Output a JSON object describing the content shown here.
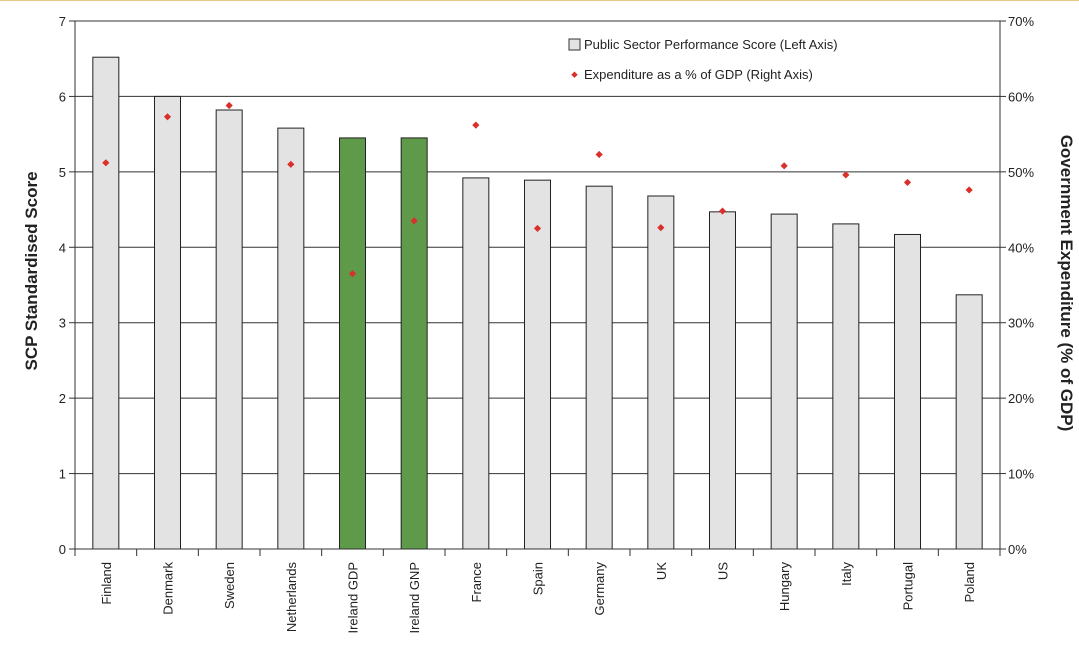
{
  "chart_data": {
    "type": "bar",
    "categories": [
      "Finland",
      "Denmark",
      "Sweden",
      "Netherlands",
      "Ireland  GDP",
      "Ireland GNP",
      "France",
      "Spain",
      "Germany",
      "UK",
      "US",
      "Hungary",
      "Italy",
      "Portugal",
      "Poland"
    ],
    "series": [
      {
        "name": "Public Sector Performance Score (Left Axis)",
        "type": "bar",
        "axis": "left",
        "values": [
          6.52,
          6.0,
          5.82,
          5.58,
          5.45,
          5.45,
          4.92,
          4.89,
          4.81,
          4.68,
          4.47,
          4.44,
          4.31,
          4.17,
          3.37
        ],
        "color": "#e3e3e3",
        "highlight_color": "#5e9a4a",
        "highlight_categories": [
          "Ireland  GDP",
          "Ireland GNP"
        ]
      },
      {
        "name": "Expenditure as a % of GDP (Right Axis)",
        "type": "scatter",
        "axis": "right",
        "values": [
          51.2,
          57.3,
          58.8,
          51.0,
          36.5,
          43.5,
          56.2,
          42.5,
          52.3,
          42.6,
          44.8,
          50.8,
          49.6,
          48.6,
          47.6
        ],
        "color": "#d9302a"
      }
    ],
    "ylabel": "SCP Standardised Score",
    "y2label": "Government Expenditure (% of GDP)",
    "ylim": [
      0,
      7
    ],
    "y2lim": [
      0,
      70
    ],
    "yticks": [
      "0",
      "1",
      "2",
      "3",
      "4",
      "5",
      "6",
      "7"
    ],
    "y2ticks": [
      "0%",
      "10%",
      "20%",
      "30%",
      "40%",
      "50%",
      "60%",
      "70%"
    ],
    "grid": true,
    "legend_position": "top-right"
  }
}
